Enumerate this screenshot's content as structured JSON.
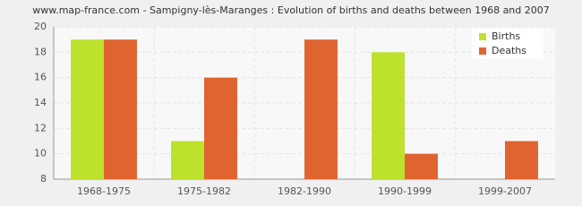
{
  "chart_data": {
    "type": "bar",
    "title": "www.map-france.com - Sampigny-lès-Maranges : Evolution of births and deaths between 1968 and 2007",
    "categories": [
      "1968-1975",
      "1975-1982",
      "1982-1990",
      "1990-1999",
      "1999-2007"
    ],
    "series": [
      {
        "name": "Births",
        "color": "#bde22d",
        "values": [
          19,
          11,
          8,
          18,
          8
        ]
      },
      {
        "name": "Deaths",
        "color": "#e0642f",
        "values": [
          19,
          16,
          19,
          10,
          11
        ]
      }
    ],
    "ylim": [
      8,
      20
    ],
    "yticks": [
      8,
      10,
      12,
      14,
      16,
      18,
      20
    ],
    "grid": true,
    "legend": "top-right"
  }
}
